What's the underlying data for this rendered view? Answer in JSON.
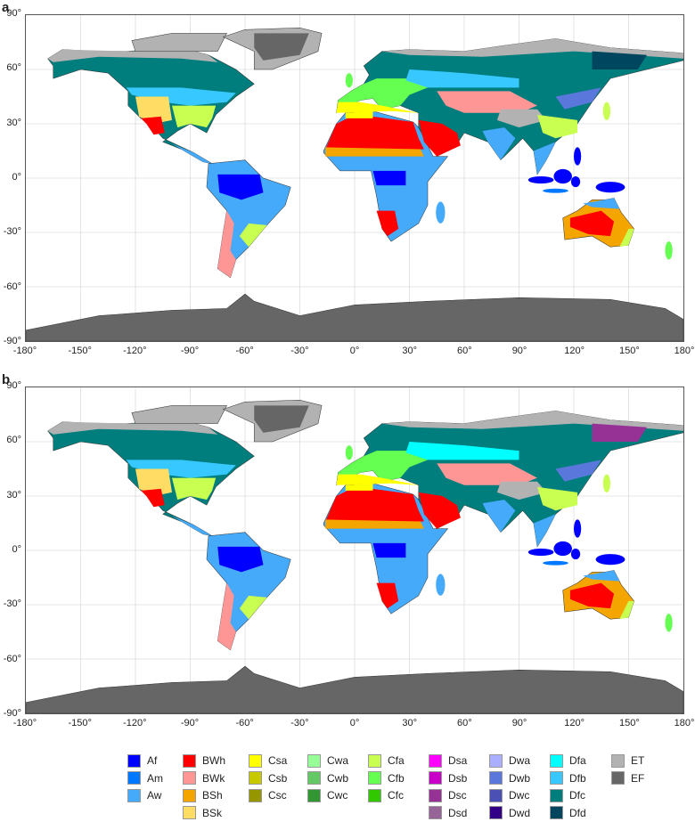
{
  "panels": [
    {
      "label": "a"
    },
    {
      "label": "b"
    }
  ],
  "axes": {
    "lat_ticks": [
      "90°",
      "60°",
      "30°",
      "0°",
      "-30°",
      "-60°",
      "-90°"
    ],
    "lon_ticks": [
      "-180°",
      "-150°",
      "-120°",
      "-90°",
      "-60°",
      "-30°",
      "0°",
      "30°",
      "60°",
      "90°",
      "120°",
      "150°",
      "180°"
    ]
  },
  "legend": [
    {
      "code": "Af",
      "color": "#0000ff"
    },
    {
      "code": "Am",
      "color": "#0078ff"
    },
    {
      "code": "Aw",
      "color": "#46aafa"
    },
    {
      "code": "BWh",
      "color": "#ff0000"
    },
    {
      "code": "BWk",
      "color": "#ff9696"
    },
    {
      "code": "BSh",
      "color": "#f5a500"
    },
    {
      "code": "BSk",
      "color": "#ffdc64"
    },
    {
      "code": "Csa",
      "color": "#ffff00"
    },
    {
      "code": "Csb",
      "color": "#c8c800"
    },
    {
      "code": "Csc",
      "color": "#969600"
    },
    {
      "code": "Cwa",
      "color": "#96ff96"
    },
    {
      "code": "Cwb",
      "color": "#64c864"
    },
    {
      "code": "Cwc",
      "color": "#329632"
    },
    {
      "code": "Cfa",
      "color": "#c8ff50"
    },
    {
      "code": "Cfb",
      "color": "#64ff50"
    },
    {
      "code": "Cfc",
      "color": "#32c800"
    },
    {
      "code": "Dsa",
      "color": "#ff00ff"
    },
    {
      "code": "Dsb",
      "color": "#c800c8"
    },
    {
      "code": "Dsc",
      "color": "#963296"
    },
    {
      "code": "Dsd",
      "color": "#966496"
    },
    {
      "code": "Dwa",
      "color": "#aaafff"
    },
    {
      "code": "Dwb",
      "color": "#5a78dc"
    },
    {
      "code": "Dwc",
      "color": "#4b50b4"
    },
    {
      "code": "Dwd",
      "color": "#320087"
    },
    {
      "code": "Dfa",
      "color": "#00ffff"
    },
    {
      "code": "Dfb",
      "color": "#37c8ff"
    },
    {
      "code": "Dfc",
      "color": "#007d7d"
    },
    {
      "code": "Dfd",
      "color": "#00465f"
    },
    {
      "code": "ET",
      "color": "#b2b2b2"
    },
    {
      "code": "EF",
      "color": "#666666"
    }
  ]
}
